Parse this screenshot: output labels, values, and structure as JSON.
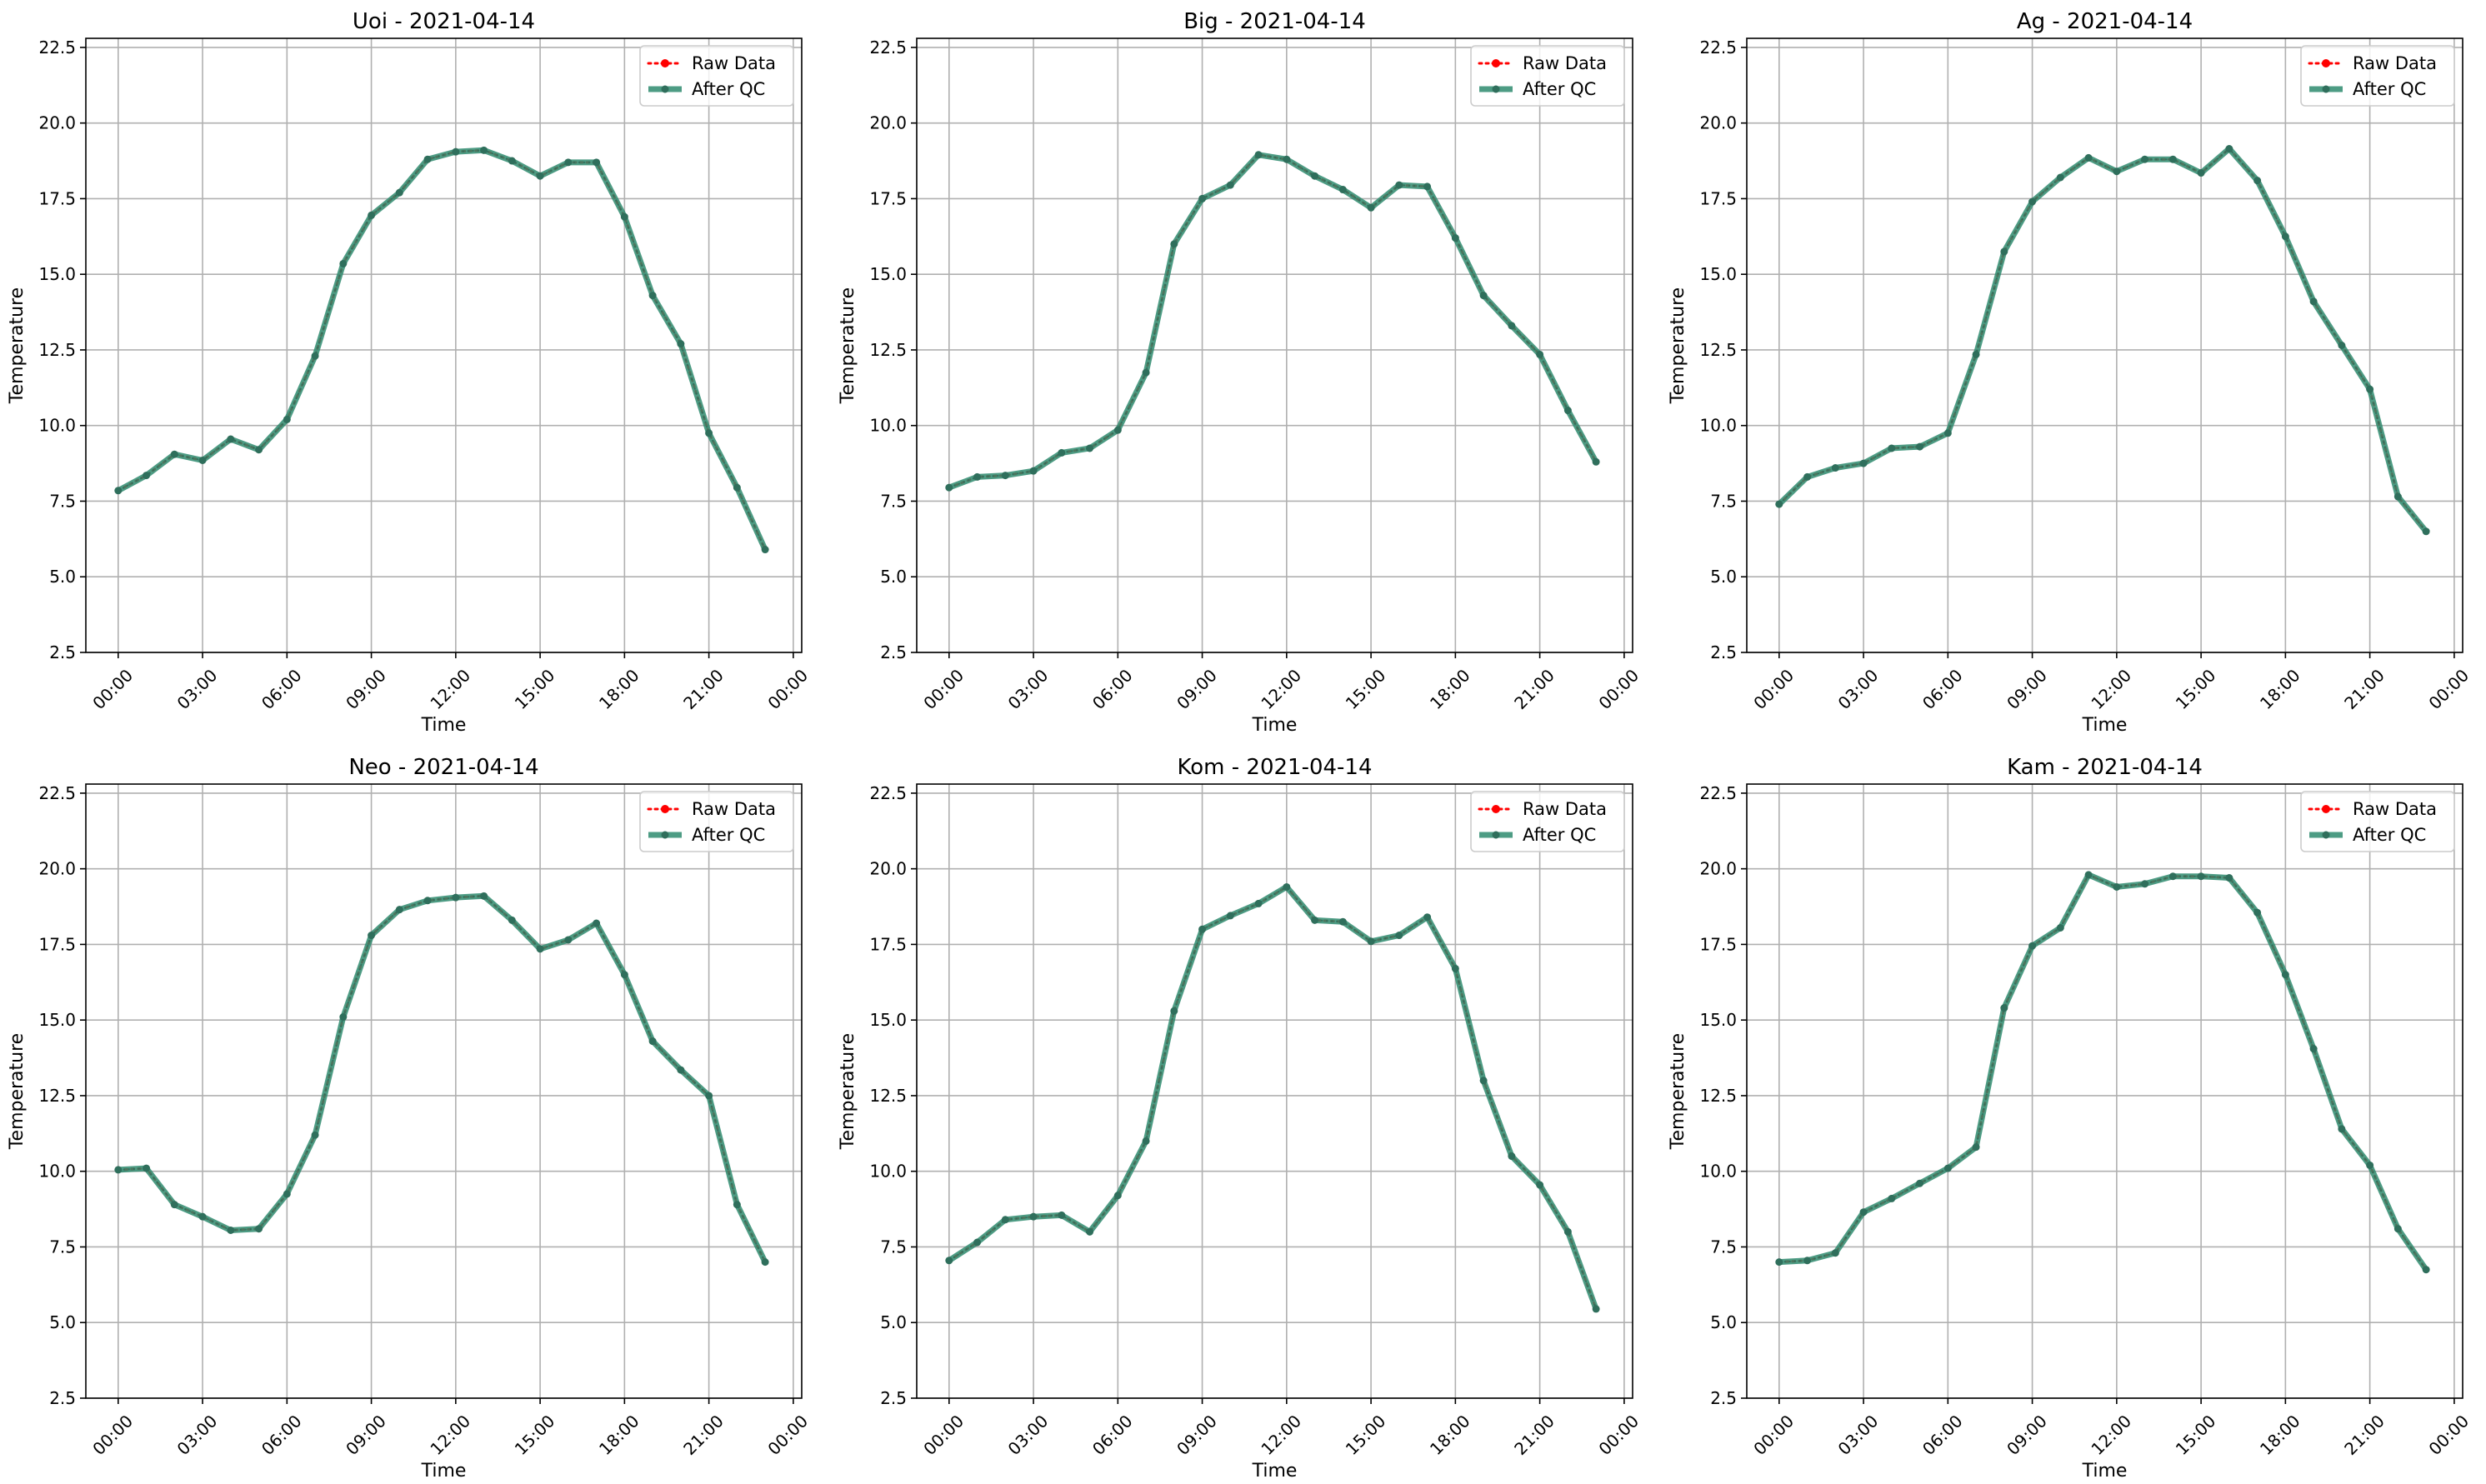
{
  "chart_data": [
    {
      "type": "line",
      "title": "Uoi - 2021-04-14",
      "xlabel": "Time",
      "ylabel": "Temperature",
      "ylim": [
        2.5,
        22.8
      ],
      "yticks": [
        "2.5",
        "5.0",
        "7.5",
        "10.0",
        "12.5",
        "15.0",
        "17.5",
        "20.0",
        "22.5"
      ],
      "xticks": [
        "00:00",
        "03:00",
        "06:00",
        "09:00",
        "12:00",
        "15:00",
        "18:00",
        "21:00",
        "00:00"
      ],
      "grid": true,
      "legend_position": "top-right",
      "x": [
        "00:00",
        "01:00",
        "02:00",
        "03:00",
        "04:00",
        "05:00",
        "06:00",
        "07:00",
        "08:00",
        "09:00",
        "10:00",
        "11:00",
        "12:00",
        "13:00",
        "14:00",
        "15:00",
        "16:00",
        "17:00",
        "18:00",
        "19:00",
        "20:00",
        "21:00",
        "22:00",
        "23:00"
      ],
      "series": [
        {
          "name": "Raw Data",
          "values": [
            7.85,
            8.35,
            9.05,
            8.85,
            9.55,
            9.2,
            10.2,
            12.3,
            15.35,
            16.95,
            17.7,
            18.8,
            19.05,
            19.1,
            18.75,
            18.25,
            18.7,
            18.7,
            16.9,
            14.3,
            12.7,
            9.75,
            7.95,
            5.9
          ]
        },
        {
          "name": "After QC",
          "values": [
            7.85,
            8.35,
            9.05,
            8.85,
            9.55,
            9.2,
            10.2,
            12.3,
            15.35,
            16.95,
            17.7,
            18.8,
            19.05,
            19.1,
            18.75,
            18.25,
            18.7,
            18.7,
            16.9,
            14.3,
            12.7,
            9.75,
            7.95,
            5.9
          ]
        }
      ]
    },
    {
      "type": "line",
      "title": "Big - 2021-04-14",
      "xlabel": "Time",
      "ylabel": "Temperature",
      "ylim": [
        2.5,
        22.8
      ],
      "yticks": [
        "2.5",
        "5.0",
        "7.5",
        "10.0",
        "12.5",
        "15.0",
        "17.5",
        "20.0",
        "22.5"
      ],
      "xticks": [
        "00:00",
        "03:00",
        "06:00",
        "09:00",
        "12:00",
        "15:00",
        "18:00",
        "21:00",
        "00:00"
      ],
      "grid": true,
      "legend_position": "top-right",
      "x": [
        "00:00",
        "01:00",
        "02:00",
        "03:00",
        "04:00",
        "05:00",
        "06:00",
        "07:00",
        "08:00",
        "09:00",
        "10:00",
        "11:00",
        "12:00",
        "13:00",
        "14:00",
        "15:00",
        "16:00",
        "17:00",
        "18:00",
        "19:00",
        "20:00",
        "21:00",
        "22:00",
        "23:00"
      ],
      "series": [
        {
          "name": "Raw Data",
          "values": [
            7.95,
            8.3,
            8.35,
            8.5,
            9.1,
            9.25,
            9.85,
            11.75,
            16.0,
            17.5,
            17.95,
            18.95,
            18.8,
            18.25,
            17.8,
            17.2,
            17.95,
            17.9,
            16.2,
            14.3,
            13.3,
            12.35,
            10.5,
            8.8
          ]
        },
        {
          "name": "After QC",
          "values": [
            7.95,
            8.3,
            8.35,
            8.5,
            9.1,
            9.25,
            9.85,
            11.75,
            16.0,
            17.5,
            17.95,
            18.95,
            18.8,
            18.25,
            17.8,
            17.2,
            17.95,
            17.9,
            16.2,
            14.3,
            13.3,
            12.35,
            10.5,
            8.8
          ]
        }
      ]
    },
    {
      "type": "line",
      "title": "Ag - 2021-04-14",
      "xlabel": "Time",
      "ylabel": "Temperature",
      "ylim": [
        2.5,
        22.8
      ],
      "yticks": [
        "2.5",
        "5.0",
        "7.5",
        "10.0",
        "12.5",
        "15.0",
        "17.5",
        "20.0",
        "22.5"
      ],
      "xticks": [
        "00:00",
        "03:00",
        "06:00",
        "09:00",
        "12:00",
        "15:00",
        "18:00",
        "21:00",
        "00:00"
      ],
      "grid": true,
      "legend_position": "top-right",
      "x": [
        "00:00",
        "01:00",
        "02:00",
        "03:00",
        "04:00",
        "05:00",
        "06:00",
        "07:00",
        "08:00",
        "09:00",
        "10:00",
        "11:00",
        "12:00",
        "13:00",
        "14:00",
        "15:00",
        "16:00",
        "17:00",
        "18:00",
        "19:00",
        "20:00",
        "21:00",
        "22:00",
        "23:00"
      ],
      "series": [
        {
          "name": "Raw Data",
          "values": [
            7.4,
            8.3,
            8.6,
            8.75,
            9.25,
            9.3,
            9.75,
            12.35,
            15.75,
            17.4,
            18.2,
            18.85,
            18.4,
            18.8,
            18.8,
            18.35,
            19.15,
            18.1,
            16.25,
            14.1,
            12.65,
            11.2,
            7.65,
            6.5
          ]
        },
        {
          "name": "After QC",
          "values": [
            7.4,
            8.3,
            8.6,
            8.75,
            9.25,
            9.3,
            9.75,
            12.35,
            15.75,
            17.4,
            18.2,
            18.85,
            18.4,
            18.8,
            18.8,
            18.35,
            19.15,
            18.1,
            16.25,
            14.1,
            12.65,
            11.2,
            7.65,
            6.5
          ]
        }
      ]
    },
    {
      "type": "line",
      "title": "Neo - 2021-04-14",
      "xlabel": "Time",
      "ylabel": "Temperature",
      "ylim": [
        2.5,
        22.8
      ],
      "yticks": [
        "2.5",
        "5.0",
        "7.5",
        "10.0",
        "12.5",
        "15.0",
        "17.5",
        "20.0",
        "22.5"
      ],
      "xticks": [
        "00:00",
        "03:00",
        "06:00",
        "09:00",
        "12:00",
        "15:00",
        "18:00",
        "21:00",
        "00:00"
      ],
      "grid": true,
      "legend_position": "top-right",
      "x": [
        "00:00",
        "01:00",
        "02:00",
        "03:00",
        "04:00",
        "05:00",
        "06:00",
        "07:00",
        "08:00",
        "09:00",
        "10:00",
        "11:00",
        "12:00",
        "13:00",
        "14:00",
        "15:00",
        "16:00",
        "17:00",
        "18:00",
        "19:00",
        "20:00",
        "21:00",
        "22:00",
        "23:00"
      ],
      "series": [
        {
          "name": "Raw Data",
          "values": [
            10.05,
            10.1,
            8.9,
            8.5,
            8.05,
            8.1,
            9.25,
            11.2,
            15.1,
            17.8,
            18.65,
            18.95,
            19.05,
            19.1,
            18.3,
            17.35,
            17.65,
            18.2,
            16.5,
            14.3,
            13.35,
            12.5,
            8.9,
            7.0
          ]
        },
        {
          "name": "After QC",
          "values": [
            10.05,
            10.1,
            8.9,
            8.5,
            8.05,
            8.1,
            9.25,
            11.2,
            15.1,
            17.8,
            18.65,
            18.95,
            19.05,
            19.1,
            18.3,
            17.35,
            17.65,
            18.2,
            16.5,
            14.3,
            13.35,
            12.5,
            8.9,
            7.0
          ]
        }
      ]
    },
    {
      "type": "line",
      "title": "Kom - 2021-04-14",
      "xlabel": "Time",
      "ylabel": "Temperature",
      "ylim": [
        2.5,
        22.8
      ],
      "yticks": [
        "2.5",
        "5.0",
        "7.5",
        "10.0",
        "12.5",
        "15.0",
        "17.5",
        "20.0",
        "22.5"
      ],
      "xticks": [
        "00:00",
        "03:00",
        "06:00",
        "09:00",
        "12:00",
        "15:00",
        "18:00",
        "21:00",
        "00:00"
      ],
      "grid": true,
      "legend_position": "top-right",
      "x": [
        "00:00",
        "01:00",
        "02:00",
        "03:00",
        "04:00",
        "05:00",
        "06:00",
        "07:00",
        "08:00",
        "09:00",
        "10:00",
        "11:00",
        "12:00",
        "13:00",
        "14:00",
        "15:00",
        "16:00",
        "17:00",
        "18:00",
        "19:00",
        "20:00",
        "21:00",
        "22:00",
        "23:00"
      ],
      "series": [
        {
          "name": "Raw Data",
          "values": [
            7.05,
            7.65,
            8.4,
            8.5,
            8.55,
            8.0,
            9.2,
            11.0,
            15.3,
            18.0,
            18.45,
            18.85,
            19.4,
            18.3,
            18.25,
            17.6,
            17.8,
            18.4,
            16.7,
            13.0,
            10.5,
            9.55,
            8.0,
            5.45
          ]
        },
        {
          "name": "After QC",
          "values": [
            7.05,
            7.65,
            8.4,
            8.5,
            8.55,
            8.0,
            9.2,
            11.0,
            15.3,
            18.0,
            18.45,
            18.85,
            19.4,
            18.3,
            18.25,
            17.6,
            17.8,
            18.4,
            16.7,
            13.0,
            10.5,
            9.55,
            8.0,
            5.45
          ]
        }
      ]
    },
    {
      "type": "line",
      "title": "Kam - 2021-04-14",
      "xlabel": "Time",
      "ylabel": "Temperature",
      "ylim": [
        2.5,
        22.8
      ],
      "yticks": [
        "2.5",
        "5.0",
        "7.5",
        "10.0",
        "12.5",
        "15.0",
        "17.5",
        "20.0",
        "22.5"
      ],
      "xticks": [
        "00:00",
        "03:00",
        "06:00",
        "09:00",
        "12:00",
        "15:00",
        "18:00",
        "21:00",
        "00:00"
      ],
      "grid": true,
      "legend_position": "top-right",
      "x": [
        "00:00",
        "01:00",
        "02:00",
        "03:00",
        "04:00",
        "05:00",
        "06:00",
        "07:00",
        "08:00",
        "09:00",
        "10:00",
        "11:00",
        "12:00",
        "13:00",
        "14:00",
        "15:00",
        "16:00",
        "17:00",
        "18:00",
        "19:00",
        "20:00",
        "21:00",
        "22:00",
        "23:00"
      ],
      "series": [
        {
          "name": "Raw Data",
          "values": [
            7.0,
            7.05,
            7.3,
            8.65,
            9.1,
            9.6,
            10.1,
            10.8,
            15.4,
            17.45,
            18.05,
            19.8,
            19.4,
            19.5,
            19.75,
            19.75,
            19.7,
            18.55,
            16.5,
            14.05,
            11.4,
            10.2,
            8.1,
            6.75
          ]
        },
        {
          "name": "After QC",
          "values": [
            7.0,
            7.05,
            7.3,
            8.65,
            9.1,
            9.6,
            10.1,
            10.8,
            15.4,
            17.45,
            18.05,
            19.8,
            19.4,
            19.5,
            19.75,
            19.75,
            19.7,
            18.55,
            16.5,
            14.05,
            11.4,
            10.2,
            8.1,
            6.75
          ]
        }
      ]
    }
  ],
  "style": {
    "raw_color": "#ff0000",
    "qc_color": "#2e8b6f",
    "qc_marker_color": "#2f6f5c",
    "grid_color": "#b0b0b0",
    "frame_color": "#000000"
  }
}
